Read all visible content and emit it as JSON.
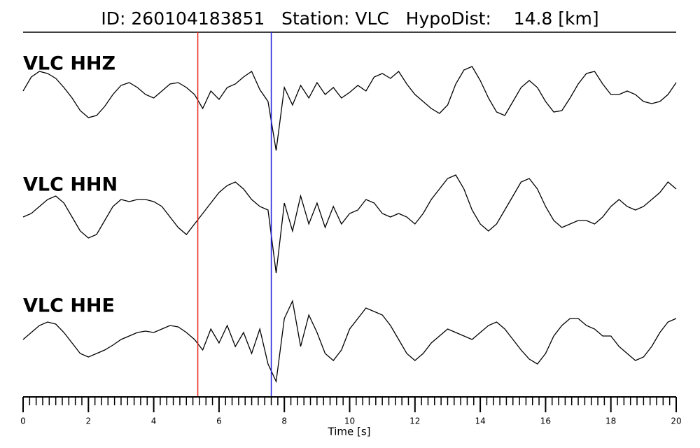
{
  "chart_data": {
    "type": "line",
    "title": "ID: 260104183851   Station: VLC   HypoDist:    14.8 [km]",
    "xlabel": "Time [s]",
    "xlim": [
      0,
      20
    ],
    "xticks": [
      0,
      2,
      4,
      6,
      8,
      10,
      12,
      14,
      16,
      18,
      20
    ],
    "xticks_minor": [
      0,
      0.2,
      0.4,
      0.6,
      0.8,
      1,
      1.2,
      1.4,
      1.6,
      1.8,
      2,
      2.2,
      2.4,
      2.6,
      2.8,
      3,
      3.2,
      3.4,
      3.6,
      3.8,
      4,
      4.2,
      4.4,
      4.6,
      4.8,
      5,
      5.2,
      5.4,
      5.6,
      5.8,
      6,
      6.2,
      6.4,
      6.6,
      6.8,
      7,
      7.2,
      7.4,
      7.6,
      7.8,
      8,
      8.2,
      8.4,
      8.6,
      8.8,
      9,
      9.2,
      9.4,
      9.6,
      9.8,
      10,
      10.2,
      10.4,
      10.6,
      10.8,
      11,
      11.2,
      11.4,
      11.6,
      11.8,
      12,
      12.2,
      12.4,
      12.6,
      12.8,
      13,
      13.2,
      13.4,
      13.6,
      13.8,
      14,
      14.2,
      14.4,
      14.6,
      14.8,
      15,
      15.2,
      15.4,
      15.6,
      15.8,
      16,
      16.2,
      16.4,
      16.6,
      16.8,
      17,
      17.2,
      17.4,
      17.6,
      17.8,
      18,
      18.2,
      18.4,
      18.6,
      18.8,
      19,
      19.2,
      19.4,
      19.6,
      19.8,
      20
    ],
    "picks": [
      {
        "x": 5.35,
        "color": "#e8261e"
      },
      {
        "x": 7.6,
        "color": "#2020e0"
      }
    ],
    "label_color": "#4c9a00",
    "x": [
      0,
      0.25,
      0.5,
      0.75,
      1,
      1.25,
      1.5,
      1.75,
      2,
      2.25,
      2.5,
      2.75,
      3,
      3.25,
      3.5,
      3.75,
      4,
      4.25,
      4.5,
      4.75,
      5,
      5.25,
      5.5,
      5.75,
      6,
      6.25,
      6.5,
      6.75,
      7,
      7.25,
      7.5,
      7.75,
      8,
      8.25,
      8.5,
      8.75,
      9,
      9.25,
      9.5,
      9.75,
      10,
      10.25,
      10.5,
      10.75,
      11,
      11.25,
      11.5,
      11.75,
      12,
      12.25,
      12.5,
      12.75,
      13,
      13.25,
      13.5,
      13.75,
      14,
      14.25,
      14.5,
      14.75,
      15,
      15.25,
      15.5,
      15.75,
      16,
      16.25,
      16.5,
      16.75,
      17,
      17.25,
      17.5,
      17.75,
      18,
      18.25,
      18.5,
      18.75,
      19,
      19.25,
      19.5,
      19.75,
      20
    ],
    "series": [
      {
        "name": "VLC HHZ",
        "color": "#000000",
        "ylim": [
          -100,
          100
        ],
        "values": [
          10,
          30,
          38,
          35,
          28,
          15,
          0,
          -18,
          -28,
          -25,
          -12,
          5,
          18,
          22,
          15,
          5,
          0,
          10,
          20,
          22,
          15,
          5,
          -15,
          10,
          -2,
          15,
          20,
          30,
          38,
          12,
          -5,
          -75,
          15,
          -10,
          18,
          0,
          22,
          5,
          15,
          0,
          8,
          18,
          10,
          30,
          35,
          28,
          38,
          20,
          5,
          -5,
          -15,
          -22,
          -10,
          20,
          40,
          45,
          25,
          0,
          -20,
          -25,
          -5,
          15,
          25,
          15,
          -5,
          -20,
          -18,
          0,
          20,
          35,
          38,
          20,
          5,
          5,
          10,
          5,
          -5,
          -8,
          -5,
          5,
          22
        ]
      },
      {
        "name": "VLC HHN",
        "color": "#000000",
        "ylim": [
          -100,
          100
        ],
        "values": [
          0,
          5,
          15,
          25,
          30,
          20,
          0,
          -20,
          -30,
          -25,
          -5,
          15,
          25,
          22,
          25,
          25,
          22,
          15,
          0,
          -15,
          -25,
          -10,
          5,
          20,
          35,
          45,
          50,
          40,
          25,
          15,
          10,
          -80,
          20,
          -20,
          30,
          -10,
          20,
          -15,
          15,
          -10,
          5,
          10,
          25,
          20,
          5,
          0,
          5,
          0,
          -10,
          5,
          25,
          40,
          55,
          60,
          40,
          10,
          -10,
          -20,
          -10,
          10,
          30,
          50,
          55,
          40,
          15,
          -5,
          -15,
          -10,
          -5,
          -5,
          -10,
          0,
          15,
          25,
          15,
          10,
          15,
          25,
          35,
          50,
          40
        ]
      },
      {
        "name": "VLC HHE",
        "color": "#000000",
        "ylim": [
          -100,
          100
        ],
        "values": [
          0,
          10,
          20,
          25,
          22,
          10,
          -5,
          -20,
          -25,
          -20,
          -15,
          -8,
          0,
          5,
          10,
          12,
          10,
          15,
          20,
          18,
          10,
          0,
          -15,
          15,
          -5,
          20,
          -10,
          10,
          -20,
          15,
          -35,
          -60,
          30,
          55,
          -10,
          35,
          10,
          -20,
          -30,
          -15,
          15,
          30,
          45,
          40,
          35,
          20,
          0,
          -20,
          -30,
          -20,
          -5,
          5,
          15,
          10,
          5,
          0,
          10,
          20,
          25,
          15,
          0,
          -15,
          -28,
          -35,
          -20,
          5,
          20,
          30,
          30,
          20,
          15,
          5,
          5,
          -10,
          -20,
          -30,
          -25,
          -10,
          10,
          25,
          30
        ]
      }
    ]
  }
}
